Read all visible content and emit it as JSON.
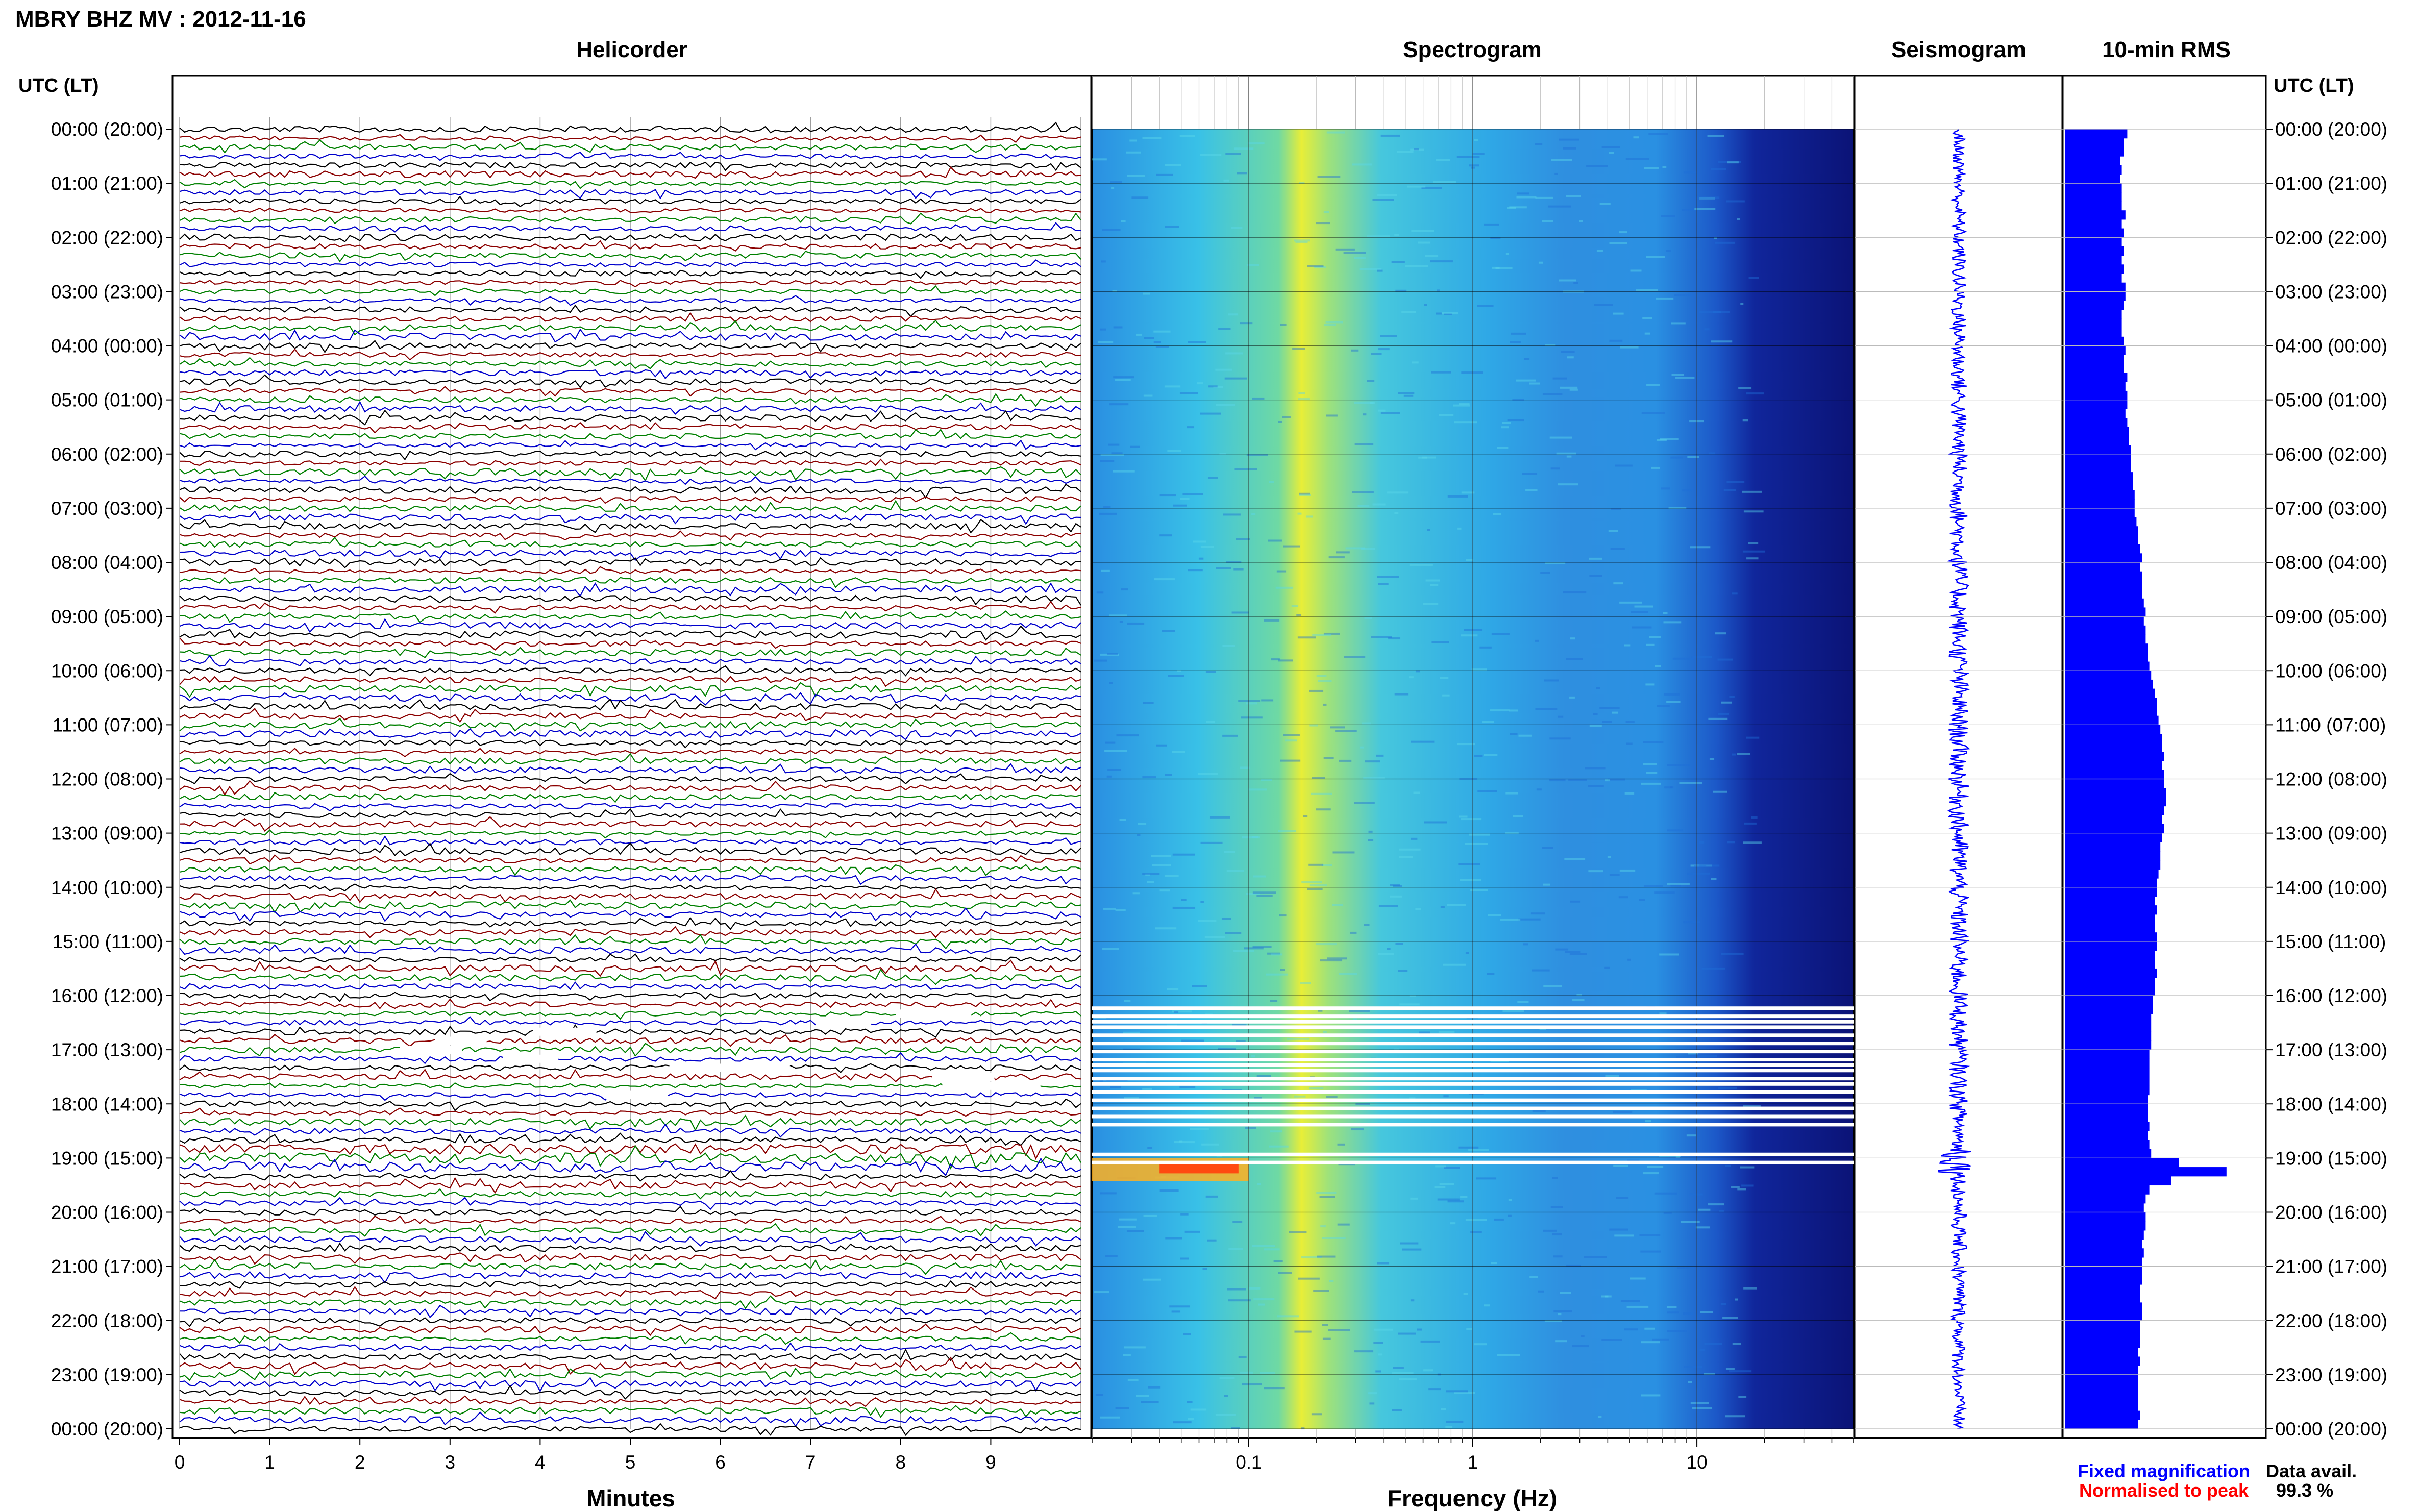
{
  "page": {
    "title": "MBRY BHZ MV : 2012-11-16"
  },
  "panels": {
    "helicorder": "Helicorder",
    "spectrogram": "Spectrogram",
    "seismogram": "Seismogram",
    "rms": "10-min RMS"
  },
  "time_axis_header": "UTC (LT)",
  "time_labels": [
    "00:00 (20:00)",
    "01:00 (21:00)",
    "02:00 (22:00)",
    "03:00 (23:00)",
    "04:00 (00:00)",
    "05:00 (01:00)",
    "06:00 (02:00)",
    "07:00 (03:00)",
    "08:00 (04:00)",
    "09:00 (05:00)",
    "10:00 (06:00)",
    "11:00 (07:00)",
    "12:00 (08:00)",
    "13:00 (09:00)",
    "14:00 (10:00)",
    "15:00 (11:00)",
    "16:00 (12:00)",
    "17:00 (13:00)",
    "18:00 (14:00)",
    "19:00 (15:00)",
    "20:00 (16:00)",
    "21:00 (17:00)",
    "22:00 (18:00)",
    "23:00 (19:00)",
    "00:00 (20:00)"
  ],
  "helicorder_x": {
    "label": "Minutes",
    "ticks": [
      "0",
      "1",
      "2",
      "3",
      "4",
      "5",
      "6",
      "7",
      "8",
      "9"
    ]
  },
  "spectrogram_x": {
    "label": "Frequency (Hz)",
    "ticks": [
      "0.1",
      "1",
      "10"
    ],
    "scale": "log",
    "range": [
      0.02,
      50
    ]
  },
  "legend": {
    "fixed": "Fixed magnification",
    "normalised": "Normalised to peak",
    "fixed_color": "#0000ff",
    "normalised_color": "#ff0000"
  },
  "data_avail": {
    "label": "Data avail.",
    "value": "99.3 %"
  },
  "colors": {
    "trace_cycle": [
      "#000000",
      "#8b0000",
      "#008000",
      "#0000cc"
    ],
    "rms_bar": "#0000ff",
    "seismo": "#0000ff"
  },
  "chart_data": [
    {
      "type": "line",
      "title": "Helicorder",
      "xlabel": "Minutes",
      "xlim": [
        0,
        10
      ],
      "rows_per_hour": 6,
      "row_minutes": 10,
      "trace_color_cycle": [
        "black",
        "darkred",
        "green",
        "blue"
      ],
      "data_gaps_hours_utc": [
        [
          16.2,
          18.2
        ],
        [
          18.9,
          19.1
        ]
      ]
    },
    {
      "type": "heatmap",
      "title": "Spectrogram",
      "xlabel": "Frequency (Hz)",
      "xscale": "log",
      "xlim": [
        0.02,
        50
      ],
      "peak_band_hz": [
        0.2,
        0.3
      ],
      "high_energy_event": {
        "hour_utc": 19.0,
        "freq_hz": [
          0.02,
          0.1
        ]
      },
      "gap_hours_utc": [
        16.2,
        16.35,
        16.45,
        16.55,
        16.7,
        16.85,
        17.0,
        17.15,
        17.25,
        17.35,
        17.5,
        17.6,
        17.75,
        17.9,
        18.05,
        18.2,
        18.35,
        18.9,
        19.05
      ]
    },
    {
      "type": "line",
      "title": "Seismogram",
      "note": "day-long vertical trace, fixed magnification"
    },
    {
      "type": "bar",
      "title": "10-min RMS",
      "orientation": "horizontal",
      "x": "hour UTC (10-minute bins)",
      "values": [
        0.34,
        0.32,
        0.32,
        0.3,
        0.31,
        0.3,
        0.31,
        0.31,
        0.31,
        0.33,
        0.31,
        0.32,
        0.31,
        0.32,
        0.31,
        0.32,
        0.31,
        0.33,
        0.33,
        0.32,
        0.31,
        0.31,
        0.31,
        0.32,
        0.33,
        0.32,
        0.32,
        0.34,
        0.33,
        0.34,
        0.34,
        0.33,
        0.34,
        0.35,
        0.35,
        0.36,
        0.36,
        0.36,
        0.37,
        0.37,
        0.38,
        0.38,
        0.38,
        0.39,
        0.4,
        0.4,
        0.41,
        0.42,
        0.41,
        0.42,
        0.42,
        0.42,
        0.43,
        0.44,
        0.43,
        0.44,
        0.44,
        0.45,
        0.45,
        0.46,
        0.47,
        0.48,
        0.49,
        0.5,
        0.5,
        0.51,
        0.52,
        0.53,
        0.53,
        0.54,
        0.53,
        0.54,
        0.54,
        0.55,
        0.55,
        0.54,
        0.53,
        0.54,
        0.53,
        0.52,
        0.52,
        0.52,
        0.51,
        0.5,
        0.5,
        0.49,
        0.5,
        0.49,
        0.49,
        0.5,
        0.5,
        0.49,
        0.49,
        0.5,
        0.49,
        0.49,
        0.48,
        0.48,
        0.47,
        0.47,
        0.47,
        0.47,
        0.46,
        0.46,
        0.46,
        0.46,
        0.46,
        0.45,
        0.45,
        0.45,
        0.46,
        0.45,
        0.46,
        0.47,
        0.62,
        0.88,
        0.58,
        0.46,
        0.44,
        0.43,
        0.44,
        0.44,
        0.43,
        0.42,
        0.43,
        0.42,
        0.42,
        0.42,
        0.41,
        0.41,
        0.42,
        0.42,
        0.41,
        0.41,
        0.41,
        0.4,
        0.41,
        0.4,
        0.4,
        0.4,
        0.4,
        0.4,
        0.41,
        0.4
      ]
    }
  ]
}
